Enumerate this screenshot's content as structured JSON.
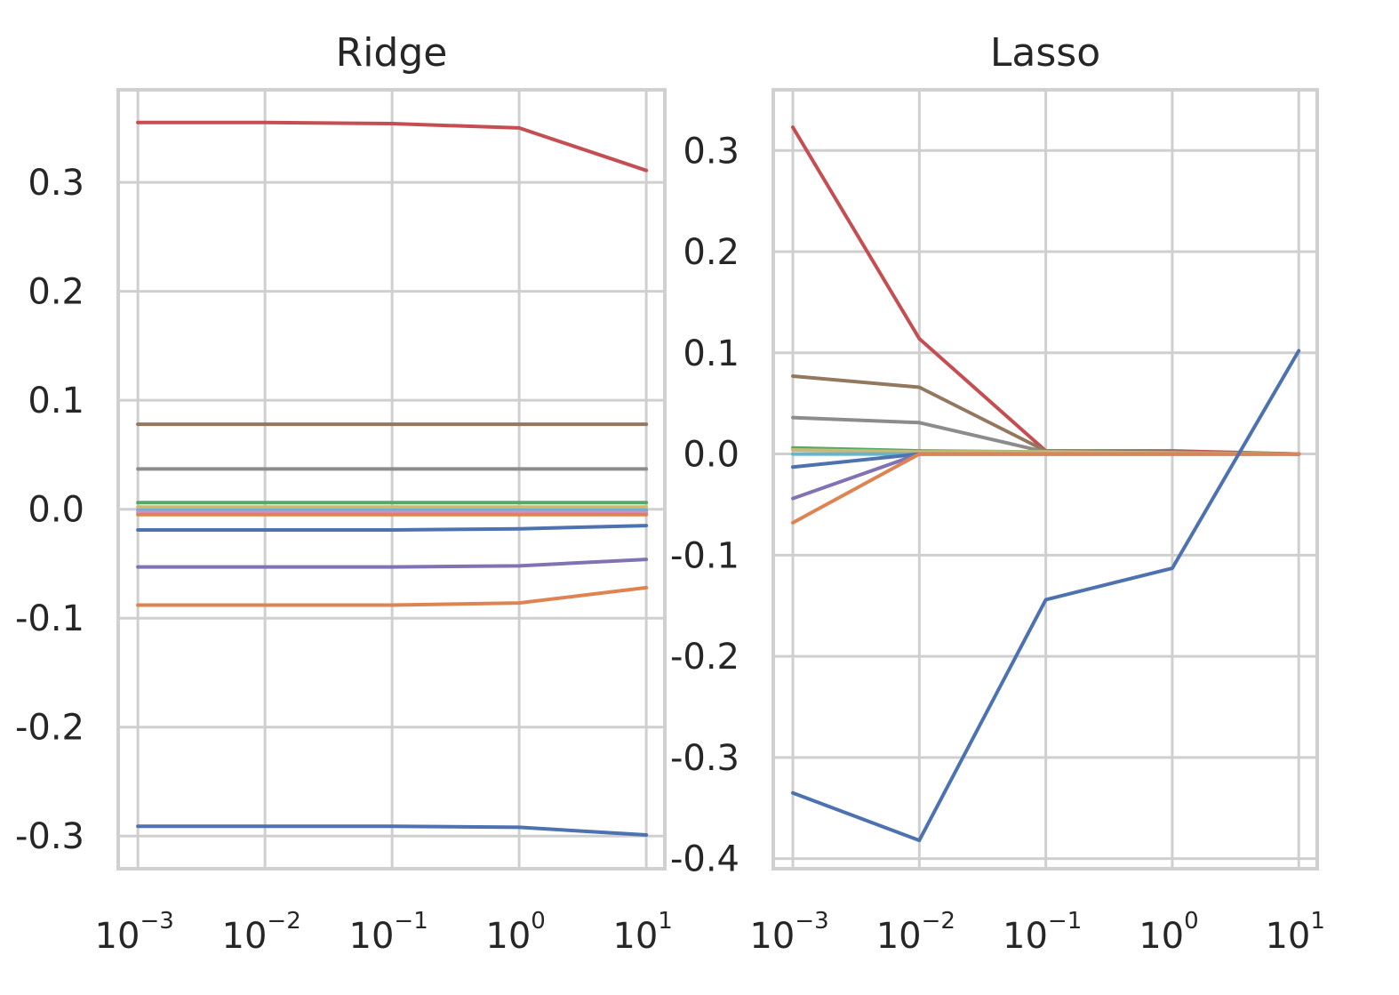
{
  "chart_data": [
    {
      "type": "line",
      "title": "Ridge",
      "x": [
        0.001,
        0.01,
        0.1,
        1,
        10
      ],
      "x_scale": "log",
      "xlim": [
        0.0007,
        14
      ],
      "ylim": [
        -0.33,
        0.385
      ],
      "grid": true,
      "x_ticks": [
        {
          "base": "10",
          "exp": "−3"
        },
        {
          "base": "10",
          "exp": "−2"
        },
        {
          "base": "10",
          "exp": "−1"
        },
        {
          "base": "10",
          "exp": "0"
        },
        {
          "base": "10",
          "exp": "1"
        }
      ],
      "y_ticks": [
        {
          "value": 0.3,
          "label": "0.3"
        },
        {
          "value": 0.2,
          "label": "0.2"
        },
        {
          "value": 0.1,
          "label": "0.1"
        },
        {
          "value": 0.0,
          "label": "0.0"
        },
        {
          "value": -0.1,
          "label": "-0.1"
        },
        {
          "value": -0.2,
          "label": "-0.2"
        },
        {
          "value": -0.3,
          "label": "-0.3"
        }
      ],
      "series": [
        {
          "color": "#c44e52",
          "values": [
            0.355,
            0.355,
            0.354,
            0.35,
            0.311
          ]
        },
        {
          "color": "#937860",
          "values": [
            0.078,
            0.078,
            0.078,
            0.078,
            0.078
          ]
        },
        {
          "color": "#8c8c8c",
          "values": [
            0.037,
            0.037,
            0.037,
            0.037,
            0.037
          ]
        },
        {
          "color": "#55a868",
          "values": [
            0.006,
            0.006,
            0.006,
            0.006,
            0.006
          ]
        },
        {
          "color": "#ccb974",
          "values": [
            0.002,
            0.002,
            0.002,
            0.002,
            0.002
          ]
        },
        {
          "color": "#64b5cd",
          "values": [
            -0.001,
            -0.001,
            -0.001,
            -0.001,
            -0.001
          ]
        },
        {
          "color": "#da8bc3",
          "values": [
            -0.003,
            -0.003,
            -0.003,
            -0.003,
            -0.003
          ]
        },
        {
          "color": "#dd8452",
          "values": [
            -0.005,
            -0.005,
            -0.005,
            -0.005,
            -0.005
          ]
        },
        {
          "color": "#4c72b0",
          "values": [
            -0.019,
            -0.019,
            -0.019,
            -0.018,
            -0.015
          ]
        },
        {
          "color": "#8172b3",
          "values": [
            -0.053,
            -0.053,
            -0.053,
            -0.052,
            -0.046
          ]
        },
        {
          "color": "#dd8452",
          "values": [
            -0.088,
            -0.088,
            -0.088,
            -0.086,
            -0.072
          ]
        },
        {
          "color": "#4c72b0",
          "values": [
            -0.291,
            -0.291,
            -0.291,
            -0.292,
            -0.299
          ]
        }
      ]
    },
    {
      "type": "line",
      "title": "Lasso",
      "x": [
        0.001,
        0.01,
        0.1,
        1,
        10
      ],
      "x_scale": "log",
      "xlim": [
        0.0007,
        14
      ],
      "ylim": [
        -0.41,
        0.36
      ],
      "grid": true,
      "x_ticks": [
        {
          "base": "10",
          "exp": "−3"
        },
        {
          "base": "10",
          "exp": "−2"
        },
        {
          "base": "10",
          "exp": "−1"
        },
        {
          "base": "10",
          "exp": "0"
        },
        {
          "base": "10",
          "exp": "1"
        }
      ],
      "y_ticks": [
        {
          "value": 0.3,
          "label": "0.3"
        },
        {
          "value": 0.2,
          "label": "0.2"
        },
        {
          "value": 0.1,
          "label": "0.1"
        },
        {
          "value": 0.0,
          "label": "0.0"
        },
        {
          "value": -0.1,
          "label": "-0.1"
        },
        {
          "value": -0.2,
          "label": "-0.2"
        },
        {
          "value": -0.3,
          "label": "-0.3"
        },
        {
          "value": -0.4,
          "label": "-0.4"
        }
      ],
      "series": [
        {
          "color": "#c44e52",
          "values": [
            0.323,
            0.114,
            0.003,
            0.003,
            0.0
          ]
        },
        {
          "color": "#937860",
          "values": [
            0.077,
            0.066,
            0.003,
            0.002,
            0.0
          ]
        },
        {
          "color": "#8c8c8c",
          "values": [
            0.036,
            0.031,
            0.002,
            0.001,
            0.0
          ]
        },
        {
          "color": "#55a868",
          "values": [
            0.006,
            0.003,
            0.002,
            0.001,
            0.0
          ]
        },
        {
          "color": "#ccb974",
          "values": [
            0.004,
            0.002,
            0.002,
            0.001,
            0.0
          ]
        },
        {
          "color": "#64b5cd",
          "values": [
            0.0,
            0.0,
            0.0,
            0.0,
            0.0
          ]
        },
        {
          "color": "#4c72b0",
          "values": [
            -0.013,
            0.0,
            0.0,
            0.0,
            0.0
          ]
        },
        {
          "color": "#8172b3",
          "values": [
            -0.044,
            0.0,
            0.0,
            0.0,
            0.0
          ]
        },
        {
          "color": "#dd8452",
          "values": [
            -0.068,
            0.0,
            0.0,
            0.0,
            0.0
          ]
        },
        {
          "color": "#4c72b0",
          "values": [
            -0.335,
            -0.382,
            -0.144,
            -0.113,
            0.102
          ]
        }
      ]
    }
  ]
}
